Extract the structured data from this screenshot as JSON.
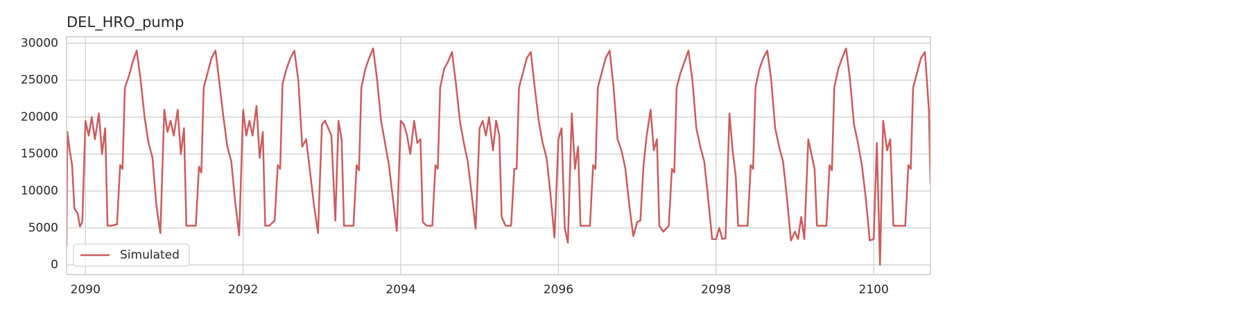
{
  "chart_data": {
    "type": "line",
    "title": "DEL_HRO_pump",
    "x": [
      2089.76,
      2089.77,
      2089.8,
      2089.83,
      2089.86,
      2089.9,
      2089.93,
      2089.96,
      2090,
      2090.04,
      2090.08,
      2090.12,
      2090.17,
      2090.21,
      2090.25,
      2090.28,
      2090.33,
      2090.4,
      2090.44,
      2090.47,
      2090.5,
      2090.55,
      2090.6,
      2090.65,
      2090.7,
      2090.75,
      2090.8,
      2090.85,
      2090.9,
      2090.95,
      2091,
      2091.04,
      2091.08,
      2091.12,
      2091.17,
      2091.21,
      2091.25,
      2091.28,
      2091.33,
      2091.4,
      2091.44,
      2091.47,
      2091.5,
      2091.55,
      2091.6,
      2091.65,
      2091.7,
      2091.75,
      2091.8,
      2091.85,
      2091.9,
      2091.95,
      2092,
      2092.04,
      2092.08,
      2092.12,
      2092.17,
      2092.21,
      2092.25,
      2092.28,
      2092.33,
      2092.4,
      2092.44,
      2092.47,
      2092.5,
      2092.55,
      2092.6,
      2092.65,
      2092.7,
      2092.75,
      2092.8,
      2092.85,
      2092.9,
      2092.95,
      2093,
      2093.04,
      2093.08,
      2093.12,
      2093.17,
      2093.21,
      2093.25,
      2093.28,
      2093.33,
      2093.4,
      2093.44,
      2093.47,
      2093.5,
      2093.55,
      2093.6,
      2093.65,
      2093.7,
      2093.75,
      2093.8,
      2093.85,
      2093.9,
      2093.95,
      2094,
      2094.04,
      2094.08,
      2094.12,
      2094.17,
      2094.21,
      2094.25,
      2094.28,
      2094.33,
      2094.4,
      2094.44,
      2094.47,
      2094.5,
      2094.55,
      2094.6,
      2094.65,
      2094.7,
      2094.75,
      2094.8,
      2094.85,
      2094.9,
      2094.95,
      2095,
      2095.04,
      2095.08,
      2095.12,
      2095.17,
      2095.21,
      2095.25,
      2095.28,
      2095.33,
      2095.4,
      2095.44,
      2095.47,
      2095.5,
      2095.55,
      2095.6,
      2095.65,
      2095.7,
      2095.75,
      2095.8,
      2095.85,
      2095.9,
      2095.95,
      2096,
      2096.04,
      2096.08,
      2096.12,
      2096.17,
      2096.21,
      2096.25,
      2096.28,
      2096.33,
      2096.4,
      2096.44,
      2096.47,
      2096.5,
      2096.55,
      2096.6,
      2096.65,
      2096.7,
      2096.75,
      2096.8,
      2096.85,
      2096.9,
      2096.95,
      2097,
      2097.04,
      2097.08,
      2097.12,
      2097.17,
      2097.21,
      2097.25,
      2097.28,
      2097.33,
      2097.4,
      2097.44,
      2097.47,
      2097.5,
      2097.55,
      2097.6,
      2097.65,
      2097.7,
      2097.75,
      2097.8,
      2097.85,
      2097.9,
      2097.95,
      2098,
      2098.04,
      2098.08,
      2098.12,
      2098.17,
      2098.21,
      2098.25,
      2098.28,
      2098.33,
      2098.4,
      2098.44,
      2098.47,
      2098.5,
      2098.55,
      2098.6,
      2098.65,
      2098.7,
      2098.75,
      2098.8,
      2098.85,
      2098.9,
      2098.95,
      2099,
      2099.04,
      2099.08,
      2099.12,
      2099.17,
      2099.21,
      2099.25,
      2099.28,
      2099.33,
      2099.4,
      2099.44,
      2099.47,
      2099.5,
      2099.55,
      2099.6,
      2099.65,
      2099.7,
      2099.75,
      2099.8,
      2099.85,
      2099.9,
      2099.95,
      2100,
      2100.04,
      2100.08,
      2100.12,
      2100.17,
      2100.21,
      2100.25,
      2100.28,
      2100.33,
      2100.4,
      2100.44,
      2100.47,
      2100.5,
      2100.55,
      2100.6,
      2100.65,
      2100.7,
      2100.72
    ],
    "series": [
      {
        "name": "Simulated",
        "color": "#cd5a5c",
        "values": [
          2500,
          18000,
          15500,
          13500,
          7600,
          7000,
          5200,
          5800,
          19500,
          17500,
          20000,
          17000,
          20500,
          15000,
          18500,
          5300,
          5300,
          5500,
          13500,
          13000,
          24000,
          25500,
          27500,
          29000,
          25000,
          20000,
          16500,
          14500,
          8000,
          4300,
          21000,
          18000,
          19500,
          17500,
          21000,
          15000,
          18500,
          5300,
          5300,
          5300,
          13300,
          12500,
          24000,
          26000,
          28000,
          29000,
          24500,
          20000,
          16000,
          14000,
          8500,
          4000,
          21000,
          17500,
          19500,
          17500,
          21500,
          14500,
          18000,
          5300,
          5300,
          6000,
          13500,
          13000,
          24500,
          26500,
          28000,
          29000,
          25000,
          16000,
          17000,
          12500,
          8000,
          4300,
          19000,
          19500,
          18500,
          17500,
          6000,
          19500,
          17000,
          5300,
          5300,
          5300,
          13500,
          12800,
          24000,
          26500,
          28000,
          29300,
          25000,
          19500,
          16500,
          13500,
          9000,
          4600,
          19500,
          19000,
          17500,
          15000,
          19500,
          16500,
          17000,
          5800,
          5300,
          5300,
          13500,
          13000,
          24000,
          26500,
          27500,
          28800,
          24500,
          19500,
          16500,
          14000,
          9500,
          4900,
          18500,
          19500,
          17500,
          20000,
          15500,
          19500,
          17500,
          6500,
          5300,
          5300,
          13000,
          13000,
          24000,
          26000,
          28000,
          28800,
          24000,
          19500,
          16500,
          14500,
          9500,
          3700,
          17000,
          18500,
          5000,
          3000,
          20500,
          13000,
          16000,
          5300,
          5300,
          5300,
          13500,
          13000,
          24000,
          26000,
          28000,
          29000,
          24000,
          17000,
          15500,
          13000,
          8000,
          3900,
          5800,
          6000,
          13500,
          17500,
          21000,
          15500,
          17000,
          5300,
          4500,
          5300,
          13000,
          12500,
          24000,
          26000,
          27500,
          29000,
          25000,
          18500,
          16000,
          14000,
          9000,
          3500,
          3500,
          5000,
          3500,
          3600,
          20500,
          15500,
          12000,
          5300,
          5300,
          5300,
          13500,
          13000,
          24000,
          26500,
          28000,
          29000,
          25000,
          18500,
          16000,
          14000,
          9000,
          3300,
          4500,
          3500,
          6500,
          3500,
          17000,
          15000,
          13000,
          5300,
          5300,
          5300,
          13500,
          12800,
          24000,
          26500,
          28000,
          29300,
          25000,
          19000,
          16500,
          13500,
          9000,
          3300,
          3500,
          16500,
          0,
          19500,
          15500,
          17000,
          5300,
          5300,
          5300,
          5300,
          13500,
          13000,
          24000,
          26000,
          28000,
          28800,
          21000,
          11000
        ]
      }
    ],
    "xlim": [
      2089.76,
      2100.72
    ],
    "xticks": [
      2090,
      2092,
      2094,
      2096,
      2098,
      2100
    ],
    "ylim": [
      -1300,
      30870
    ],
    "yticks": [
      0,
      5000,
      10000,
      15000,
      20000,
      25000,
      30000
    ],
    "grid": true,
    "legend": "lower left"
  }
}
